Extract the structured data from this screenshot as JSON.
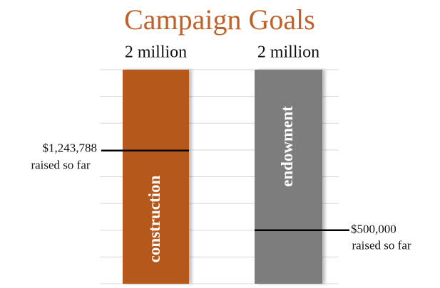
{
  "chart_data": {
    "type": "bar",
    "title": "Campaign Goals",
    "categories": [
      "construction",
      "endowment"
    ],
    "values": [
      2000000,
      2000000
    ],
    "value_labels": [
      "2 million",
      "2 million"
    ],
    "colors": [
      "#b5581c",
      "#7d7d7d"
    ],
    "raised": {
      "values": [
        1243788,
        500000
      ],
      "value_labels": [
        "$1,243,788",
        "$500,000"
      ],
      "label": "raised so far"
    },
    "ylim": [
      0,
      2000000
    ],
    "yticks": [
      0,
      250000,
      500000,
      750000,
      1000000,
      1250000,
      1500000,
      1750000,
      2000000
    ],
    "grid": true
  }
}
